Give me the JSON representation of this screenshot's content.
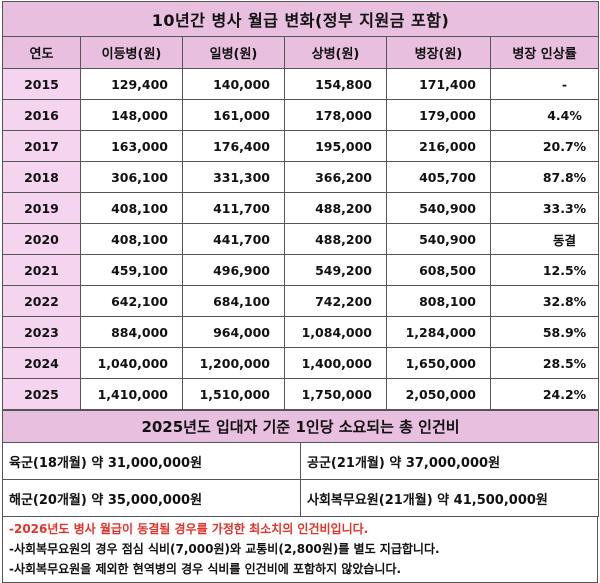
{
  "title": "10년간 병사 월급 변화(정부 지원금 포함)",
  "headers": [
    "연도",
    "이등병(원)",
    "일병(원)",
    "상병(원)",
    "병장(원)",
    "병장 인상률"
  ],
  "rows": [
    {
      "year": "2015",
      "private": "129,400",
      "pfc": "140,000",
      "corporal": "154,800",
      "sergeant": "171,400",
      "rate": "-"
    },
    {
      "year": "2016",
      "private": "148,000",
      "pfc": "161,000",
      "corporal": "178,000",
      "sergeant": "179,000",
      "rate": "4.4%"
    },
    {
      "year": "2017",
      "private": "163,000",
      "pfc": "176,400",
      "corporal": "195,000",
      "sergeant": "216,000",
      "rate": "20.7%"
    },
    {
      "year": "2018",
      "private": "306,100",
      "pfc": "331,300",
      "corporal": "366,200",
      "sergeant": "405,700",
      "rate": "87.8%"
    },
    {
      "year": "2019",
      "private": "408,100",
      "pfc": "411,700",
      "corporal": "488,200",
      "sergeant": "540,900",
      "rate": "33.3%"
    },
    {
      "year": "2020",
      "private": "408,100",
      "pfc": "441,700",
      "corporal": "488,200",
      "sergeant": "540,900",
      "rate": "동결"
    },
    {
      "year": "2021",
      "private": "459,100",
      "pfc": "496,900",
      "corporal": "549,200",
      "sergeant": "608,500",
      "rate": "12.5%"
    },
    {
      "year": "2022",
      "private": "642,100",
      "pfc": "684,100",
      "corporal": "742,200",
      "sergeant": "808,100",
      "rate": "32.8%"
    },
    {
      "year": "2023",
      "private": "884,000",
      "pfc": "964,000",
      "corporal": "1,084,000",
      "sergeant": "1,284,000",
      "rate": "58.9%"
    },
    {
      "year": "2024",
      "private": "1,040,000",
      "pfc": "1,200,000",
      "corporal": "1,400,000",
      "sergeant": "1,650,000",
      "rate": "28.5%"
    },
    {
      "year": "2025",
      "private": "1,410,000",
      "pfc": "1,510,000",
      "corporal": "1,750,000",
      "sergeant": "2,050,000",
      "rate": "24.2%"
    }
  ],
  "cost_title": "2025년도 입대자 기준 1인당 소요되는 총 인건비",
  "costs": [
    "육군(18개월) 약 31,000,000원",
    "공군(21개월) 약 37,000,000원",
    "해군(20개월) 약 35,000,000원",
    "사회복무요원(21개월) 약 41,500,000원"
  ],
  "notes": [
    "-2026년도 병사 월급이 동결될 경우를 가정한 최소치의 인건비입니다.",
    "-사회복무요원의 경우 점심 식비(7,000원)와 교통비(2,800원)를 별도 지급합니다.",
    "-사회복무요원을 제외한 현역병의 경우 식비를 인건비에 포함하지 않았습니다."
  ],
  "colors": {
    "header_bg": "#e9bfe0",
    "year_bg": "#f4d4ee",
    "note_red": "#e0342a"
  }
}
